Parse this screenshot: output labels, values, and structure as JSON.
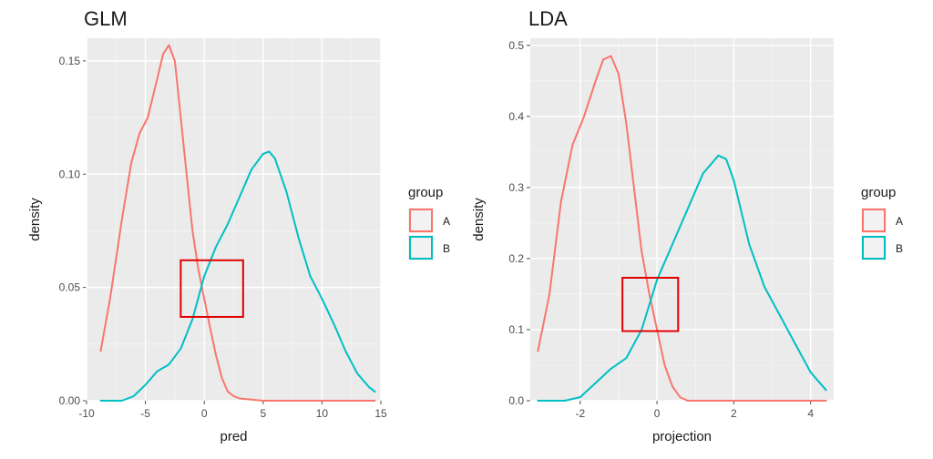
{
  "chart_data": [
    {
      "type": "line",
      "title": "GLM",
      "xlabel": "pred",
      "ylabel": "density",
      "xlim": [
        -10,
        15
      ],
      "ylim": [
        0,
        0.16
      ],
      "xticks": [
        -10,
        -5,
        0,
        5,
        10,
        15
      ],
      "yticks": [
        0.0,
        0.05,
        0.1,
        0.15
      ],
      "ytick_labels": [
        "0.00",
        "0.05",
        "0.10",
        "0.15"
      ],
      "grid": true,
      "legend": {
        "title": "group",
        "placement": "right"
      },
      "series": [
        {
          "name": "A",
          "color": "#f8766d",
          "points": [
            [
              -8.8,
              0.022
            ],
            [
              -8.0,
              0.045
            ],
            [
              -7.0,
              0.08
            ],
            [
              -6.2,
              0.105
            ],
            [
              -5.5,
              0.118
            ],
            [
              -4.8,
              0.125
            ],
            [
              -4.0,
              0.142
            ],
            [
              -3.5,
              0.153
            ],
            [
              -3.0,
              0.157
            ],
            [
              -2.5,
              0.15
            ],
            [
              -2.0,
              0.125
            ],
            [
              -1.5,
              0.1
            ],
            [
              -1.0,
              0.075
            ],
            [
              -0.5,
              0.058
            ],
            [
              0.0,
              0.045
            ],
            [
              0.5,
              0.032
            ],
            [
              1.0,
              0.02
            ],
            [
              1.5,
              0.01
            ],
            [
              2.0,
              0.004
            ],
            [
              2.5,
              0.002
            ],
            [
              3.0,
              0.001
            ],
            [
              5.0,
              0.0
            ],
            [
              14.5,
              0.0
            ]
          ]
        },
        {
          "name": "B",
          "color": "#00bfc4",
          "points": [
            [
              -8.8,
              0.0
            ],
            [
              -7.0,
              0.0
            ],
            [
              -6.0,
              0.002
            ],
            [
              -5.0,
              0.007
            ],
            [
              -4.0,
              0.013
            ],
            [
              -3.0,
              0.016
            ],
            [
              -2.0,
              0.023
            ],
            [
              -1.0,
              0.036
            ],
            [
              0.0,
              0.055
            ],
            [
              1.0,
              0.068
            ],
            [
              2.0,
              0.078
            ],
            [
              3.0,
              0.09
            ],
            [
              4.0,
              0.102
            ],
            [
              5.0,
              0.109
            ],
            [
              5.5,
              0.11
            ],
            [
              6.0,
              0.107
            ],
            [
              7.0,
              0.092
            ],
            [
              8.0,
              0.072
            ],
            [
              9.0,
              0.055
            ],
            [
              10.0,
              0.045
            ],
            [
              11.0,
              0.034
            ],
            [
              12.0,
              0.022
            ],
            [
              13.0,
              0.012
            ],
            [
              14.0,
              0.006
            ],
            [
              14.5,
              0.004
            ]
          ]
        }
      ],
      "highlight_box": {
        "x": [
          -2.0,
          3.3
        ],
        "y": [
          0.037,
          0.062
        ],
        "color": "#e00000"
      }
    },
    {
      "type": "line",
      "title": "LDA",
      "xlabel": "projection",
      "ylabel": "density",
      "xlim": [
        -3.3,
        4.6
      ],
      "ylim": [
        0,
        0.51
      ],
      "xticks": [
        -2,
        0,
        2,
        4
      ],
      "yticks": [
        0.0,
        0.1,
        0.2,
        0.3,
        0.4,
        0.5
      ],
      "ytick_labels": [
        "0.0",
        "0.1",
        "0.2",
        "0.3",
        "0.4",
        "0.5"
      ],
      "grid": true,
      "legend": {
        "title": "group",
        "placement": "right"
      },
      "series": [
        {
          "name": "A",
          "color": "#f8766d",
          "points": [
            [
              -3.1,
              0.07
            ],
            [
              -2.8,
              0.15
            ],
            [
              -2.5,
              0.28
            ],
            [
              -2.2,
              0.36
            ],
            [
              -1.9,
              0.4
            ],
            [
              -1.6,
              0.45
            ],
            [
              -1.4,
              0.48
            ],
            [
              -1.2,
              0.485
            ],
            [
              -1.0,
              0.46
            ],
            [
              -0.8,
              0.39
            ],
            [
              -0.6,
              0.3
            ],
            [
              -0.4,
              0.21
            ],
            [
              -0.2,
              0.15
            ],
            [
              0.0,
              0.1
            ],
            [
              0.2,
              0.05
            ],
            [
              0.4,
              0.02
            ],
            [
              0.6,
              0.005
            ],
            [
              0.8,
              0.0
            ],
            [
              4.4,
              0.0
            ]
          ]
        },
        {
          "name": "B",
          "color": "#00bfc4",
          "points": [
            [
              -3.1,
              0.0
            ],
            [
              -2.4,
              0.0
            ],
            [
              -2.0,
              0.005
            ],
            [
              -1.6,
              0.025
            ],
            [
              -1.2,
              0.045
            ],
            [
              -0.8,
              0.06
            ],
            [
              -0.4,
              0.1
            ],
            [
              0.0,
              0.17
            ],
            [
              0.4,
              0.22
            ],
            [
              0.8,
              0.27
            ],
            [
              1.2,
              0.32
            ],
            [
              1.6,
              0.345
            ],
            [
              1.8,
              0.34
            ],
            [
              2.0,
              0.31
            ],
            [
              2.4,
              0.22
            ],
            [
              2.8,
              0.16
            ],
            [
              3.2,
              0.12
            ],
            [
              3.6,
              0.08
            ],
            [
              4.0,
              0.04
            ],
            [
              4.4,
              0.015
            ]
          ]
        }
      ],
      "highlight_box": {
        "x": [
          -0.9,
          0.55
        ],
        "y": [
          0.098,
          0.173
        ],
        "color": "#e00000"
      }
    }
  ]
}
